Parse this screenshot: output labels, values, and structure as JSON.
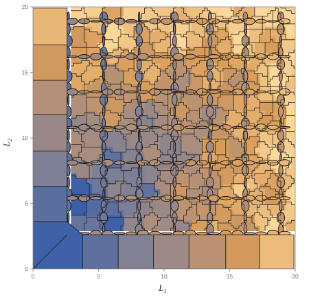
{
  "chart_data": {
    "type": "heatmap",
    "title": "",
    "xlabel": "L",
    "xlabel_subscript": "1",
    "ylabel": "L",
    "ylabel_subscript": "2",
    "xlim": [
      0,
      20
    ],
    "ylim": [
      0,
      20
    ],
    "xticks": [
      0,
      5,
      10,
      15,
      20
    ],
    "yticks": [
      0,
      5,
      10,
      15,
      20
    ],
    "grid": false,
    "frame": true,
    "colormap": [
      "#3a5ea8",
      "#7c7f97",
      "#ac8e7d",
      "#d99c59",
      "#fcd99b"
    ],
    "bottom_row_x_edges": [
      0,
      3.8,
      6.5,
      9.2,
      11.9,
      14.7,
      17.3,
      19.9
    ],
    "bottom_row_values": [
      0.0,
      0.14,
      0.28,
      0.42,
      0.58,
      0.72,
      0.88
    ],
    "left_column_y_edges": [
      3.6,
      6.3,
      9.0,
      11.8,
      14.4,
      17.1,
      19.9
    ],
    "left_column_values": [
      0.12,
      0.26,
      0.4,
      0.54,
      0.7,
      0.86
    ],
    "divergent_columns_x": [
      2.7,
      5.4,
      8.1,
      10.8,
      13.5,
      16.2,
      18.9
    ],
    "divergent_rows_y": [
      2.7,
      5.4,
      8.1,
      10.8,
      13.5,
      16.2,
      18.9
    ]
  }
}
